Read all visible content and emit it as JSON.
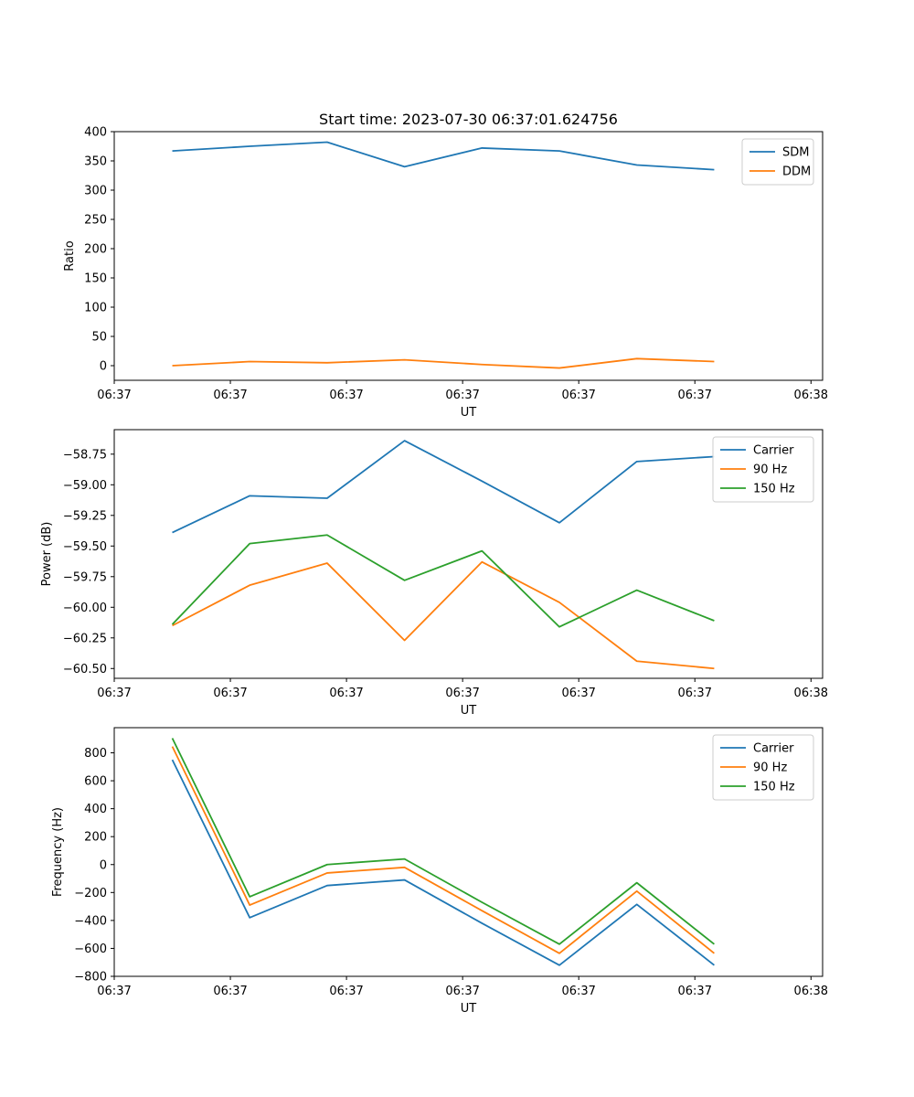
{
  "figure_title": "Start time: 2023-07-30 06:37:01.624756",
  "colors": {
    "blue": "#1f77b4",
    "orange": "#ff7f0e",
    "green": "#2ca02c",
    "axis": "#000000",
    "legend_border": "#cccccc"
  },
  "chart_data": [
    {
      "type": "line",
      "title": "Start time: 2023-07-30 06:37:01.624756",
      "xlabel": "UT",
      "ylabel": "Ratio",
      "x_index": [
        0,
        1,
        2,
        3,
        4,
        5,
        6,
        7
      ],
      "xlim": [
        -0.75,
        8.4
      ],
      "x_ticks": [
        -0.75,
        0.75,
        2.25,
        3.75,
        5.25,
        6.75,
        8.25
      ],
      "x_tick_labels": [
        "06:37",
        "06:37",
        "06:37",
        "06:37",
        "06:37",
        "06:37",
        "06:38"
      ],
      "ylim": [
        -25,
        400
      ],
      "y_ticks": [
        0,
        50,
        100,
        150,
        200,
        250,
        300,
        350,
        400
      ],
      "y_tick_labels": [
        "0",
        "50",
        "100",
        "150",
        "200",
        "250",
        "300",
        "350",
        "400"
      ],
      "legend_position": "top-right",
      "series": [
        {
          "name": "SDM",
          "color": "#1f77b4",
          "values": [
            367,
            375,
            382,
            340,
            372,
            367,
            343,
            335
          ]
        },
        {
          "name": "DDM",
          "color": "#ff7f0e",
          "values": [
            0,
            7,
            5,
            10,
            2,
            -4,
            12,
            7
          ]
        }
      ]
    },
    {
      "type": "line",
      "title": "",
      "xlabel": "UT",
      "ylabel": "Power (dB)",
      "x_index": [
        0,
        1,
        2,
        3,
        4,
        5,
        6,
        7
      ],
      "xlim": [
        -0.75,
        8.4
      ],
      "x_ticks": [
        -0.75,
        0.75,
        2.25,
        3.75,
        5.25,
        6.75,
        8.25
      ],
      "x_tick_labels": [
        "06:37",
        "06:37",
        "06:37",
        "06:37",
        "06:37",
        "06:37",
        "06:38"
      ],
      "ylim": [
        -60.58,
        -58.55
      ],
      "y_ticks": [
        -60.5,
        -60.25,
        -60.0,
        -59.75,
        -59.5,
        -59.25,
        -59.0,
        -58.75
      ],
      "y_tick_labels": [
        "−60.50",
        "−60.25",
        "−60.00",
        "−59.75",
        "−59.50",
        "−59.25",
        "−59.00",
        "−58.75"
      ],
      "legend_position": "top-right",
      "series": [
        {
          "name": "Carrier",
          "color": "#1f77b4",
          "values": [
            -59.39,
            -59.09,
            -59.11,
            -58.64,
            -58.97,
            -59.31,
            -58.81,
            -58.77
          ]
        },
        {
          "name": "90 Hz",
          "color": "#ff7f0e",
          "values": [
            -60.15,
            -59.82,
            -59.64,
            -60.27,
            -59.63,
            -59.96,
            -60.44,
            -60.5
          ]
        },
        {
          "name": "150 Hz",
          "color": "#2ca02c",
          "values": [
            -60.14,
            -59.48,
            -59.41,
            -59.78,
            -59.54,
            -60.16,
            -59.86,
            -60.11
          ]
        }
      ]
    },
    {
      "type": "line",
      "title": "",
      "xlabel": "UT",
      "ylabel": "Frequency (Hz)",
      "x_index": [
        0,
        1,
        2,
        3,
        4,
        5,
        6,
        7
      ],
      "xlim": [
        -0.75,
        8.4
      ],
      "x_ticks": [
        -0.75,
        0.75,
        2.25,
        3.75,
        5.25,
        6.75,
        8.25
      ],
      "x_tick_labels": [
        "06:37",
        "06:37",
        "06:37",
        "06:37",
        "06:37",
        "06:37",
        "06:38"
      ],
      "ylim": [
        -800,
        980
      ],
      "y_ticks": [
        -800,
        -600,
        -400,
        -200,
        0,
        200,
        400,
        600,
        800
      ],
      "y_tick_labels": [
        "−800",
        "−600",
        "−400",
        "−200",
        "0",
        "200",
        "400",
        "600",
        "800"
      ],
      "legend_position": "top-right",
      "series": [
        {
          "name": "Carrier",
          "color": "#1f77b4",
          "values": [
            750,
            -380,
            -150,
            -110,
            -420,
            -720,
            -285,
            -720
          ]
        },
        {
          "name": "90 Hz",
          "color": "#ff7f0e",
          "values": [
            845,
            -290,
            -60,
            -20,
            -330,
            -635,
            -190,
            -635
          ]
        },
        {
          "name": "150 Hz",
          "color": "#2ca02c",
          "values": [
            905,
            -230,
            0,
            40,
            -270,
            -570,
            -130,
            -570
          ]
        }
      ]
    }
  ]
}
